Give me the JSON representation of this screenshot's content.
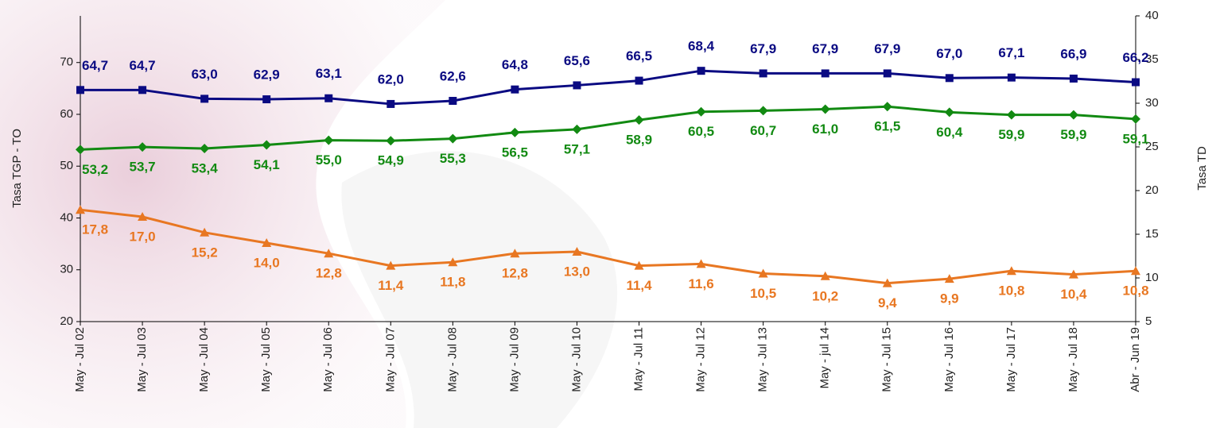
{
  "chart_data": {
    "type": "line",
    "categories": [
      "May - Jul 02",
      "May - Jul 03",
      "May - Jul 04",
      "May - Jul 05",
      "May - Jul 06",
      "May - Jul 07",
      "May - Jul 08",
      "May - Jul 09",
      "May - Jul 10",
      "May - Jul 11",
      "May - Jul 12",
      "May - Jul 13",
      "May - jul 14",
      "May - Jul 15",
      "May - Jul 16",
      "May - Jul 17",
      "May - Jul 18",
      "Abr - Jun 19"
    ],
    "y_label": "Tasa TGP - TO",
    "y2_label": "Tasa TD",
    "ylim": [
      20,
      79
    ],
    "yticks": [
      20,
      30,
      40,
      50,
      60,
      70
    ],
    "y2lim": [
      5,
      40
    ],
    "y2ticks": [
      5,
      10,
      15,
      20,
      25,
      30,
      35,
      40
    ],
    "series": [
      {
        "color": "#0a0a82",
        "marker": "square",
        "label_pos": "above",
        "values": [
          64.7,
          64.7,
          63.0,
          62.9,
          63.1,
          62.0,
          62.6,
          64.8,
          65.6,
          66.5,
          68.4,
          67.9,
          67.9,
          67.9,
          67.0,
          67.1,
          66.9,
          66.2
        ],
        "value_labels": [
          "64,7",
          "64,7",
          "63,0",
          "62,9",
          "63,1",
          "62,0",
          "62,6",
          "64,8",
          "65,6",
          "66,5",
          "68,4",
          "67,9",
          "67,9",
          "67,9",
          "67,0",
          "67,1",
          "66,9",
          "66,2"
        ]
      },
      {
        "color": "#128a12",
        "marker": "diamond",
        "label_pos": "below",
        "values": [
          53.2,
          53.7,
          53.4,
          54.1,
          55.0,
          54.9,
          55.3,
          56.5,
          57.1,
          58.9,
          60.5,
          60.7,
          61.0,
          61.5,
          60.4,
          59.9,
          59.9,
          59.1
        ],
        "value_labels": [
          "53,2",
          "53,7",
          "53,4",
          "54,1",
          "55,0",
          "54,9",
          "55,3",
          "56,5",
          "57,1",
          "58,9",
          "60,5",
          "60,7",
          "61,0",
          "61,5",
          "60,4",
          "59,9",
          "59,9",
          "59,1"
        ]
      },
      {
        "color": "#e87722",
        "marker": "triangle",
        "label_pos": "below",
        "axis": "y2",
        "values": [
          17.8,
          17.0,
          15.2,
          14.0,
          12.8,
          11.4,
          11.8,
          12.8,
          13.0,
          11.4,
          11.6,
          10.5,
          10.2,
          9.4,
          9.9,
          10.8,
          10.4,
          10.8
        ],
        "value_labels": [
          "17,8",
          "17,0",
          "15,2",
          "14,0",
          "12,8",
          "11,4",
          "11,8",
          "12,8",
          "13,0",
          "11,4",
          "11,6",
          "10,5",
          "10,2",
          "9,4",
          "9,9",
          "10,8",
          "10,4",
          "10,8"
        ]
      }
    ]
  }
}
